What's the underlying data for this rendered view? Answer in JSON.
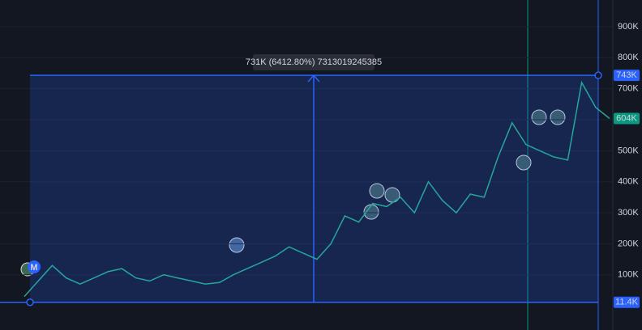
{
  "chart_data": {
    "type": "line",
    "color": "#26a69a",
    "categories": [
      null,
      null,
      null,
      null,
      null,
      null,
      null,
      null,
      null,
      null,
      null,
      null,
      null,
      null,
      null,
      null,
      null,
      null,
      null,
      null,
      null,
      null,
      null,
      null,
      null,
      null,
      null,
      null,
      null,
      null,
      null,
      null,
      null,
      null,
      null,
      null,
      null,
      null,
      null,
      null,
      null,
      null,
      null
    ],
    "values": [
      30000,
      80000,
      130000,
      90000,
      70000,
      90000,
      110000,
      120000,
      90000,
      80000,
      100000,
      90000,
      80000,
      70000,
      75000,
      100000,
      120000,
      140000,
      160000,
      190000,
      170000,
      150000,
      200000,
      290000,
      270000,
      330000,
      320000,
      350000,
      300000,
      400000,
      340000,
      300000,
      360000,
      350000,
      480000,
      590000,
      520000,
      500000,
      480000,
      470000,
      720000,
      640000,
      604000
    ],
    "ylim": [
      -78000,
      986000
    ],
    "yticks": [
      {
        "value": 100000,
        "label": "100K"
      },
      {
        "value": 200000,
        "label": "200K"
      },
      {
        "value": 300000,
        "label": "300K"
      },
      {
        "value": 400000,
        "label": "400K"
      },
      {
        "value": 500000,
        "label": "500K"
      },
      {
        "value": 600000,
        "label": "600K"
      },
      {
        "value": 700000,
        "label": "700K"
      },
      {
        "value": 800000,
        "label": "800K"
      },
      {
        "value": 900000,
        "label": "900K"
      }
    ],
    "grid": true,
    "measure": {
      "label": "731K (6412.80%) 7313019245385",
      "start": 11400,
      "end": 743000
    },
    "price_labels": [
      {
        "value": 743000,
        "label": "743K",
        "color": "#2962ff"
      },
      {
        "value": 604000,
        "label": "604K",
        "color": "#089981"
      },
      {
        "value": 11400,
        "label": "11.4K",
        "color": "#2962ff"
      }
    ],
    "marker": "M"
  }
}
